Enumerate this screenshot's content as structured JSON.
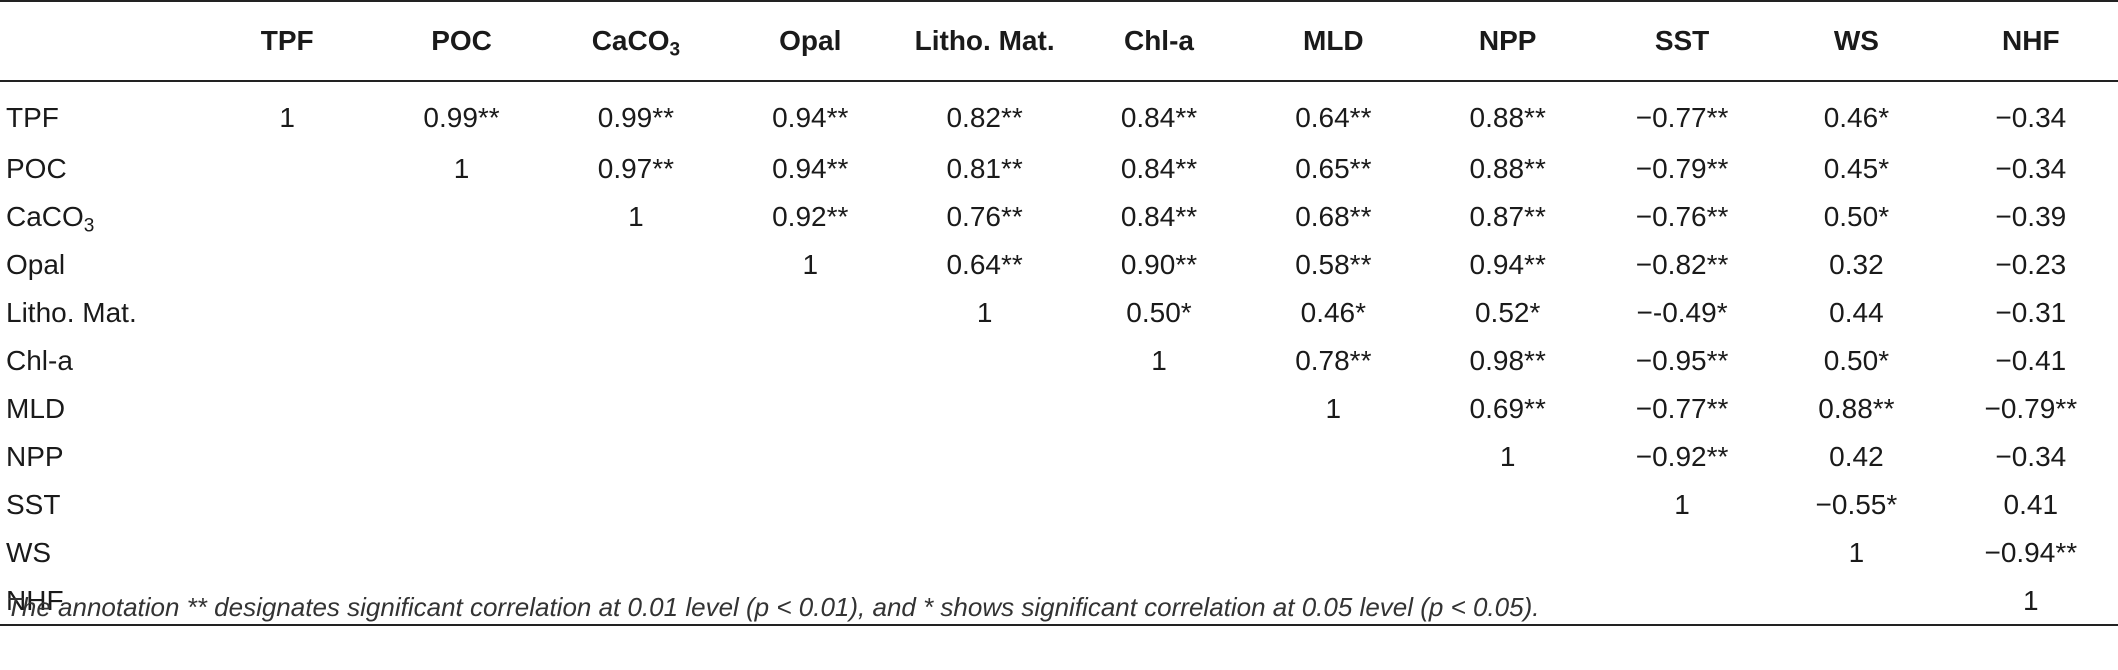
{
  "table": {
    "corner": "",
    "columns": [
      {
        "main": "TPF",
        "sub": ""
      },
      {
        "main": "POC",
        "sub": ""
      },
      {
        "main": "CaCO",
        "sub": "3"
      },
      {
        "main": "Opal",
        "sub": ""
      },
      {
        "main": "Litho. Mat.",
        "sub": ""
      },
      {
        "main": "Chl-a",
        "sub": ""
      },
      {
        "main": "MLD",
        "sub": ""
      },
      {
        "main": "NPP",
        "sub": ""
      },
      {
        "main": "SST",
        "sub": ""
      },
      {
        "main": "WS",
        "sub": ""
      },
      {
        "main": "NHF",
        "sub": ""
      }
    ],
    "rows": [
      {
        "label": {
          "main": "TPF",
          "sub": ""
        },
        "cells": [
          "1",
          "0.99**",
          "0.99**",
          "0.94**",
          "0.82**",
          "0.84**",
          "0.64**",
          "0.88**",
          "−0.77**",
          "0.46*",
          "−0.34"
        ]
      },
      {
        "label": {
          "main": "POC",
          "sub": ""
        },
        "cells": [
          "",
          "1",
          "0.97**",
          "0.94**",
          "0.81**",
          "0.84**",
          "0.65**",
          "0.88**",
          "−0.79**",
          "0.45*",
          "−0.34"
        ]
      },
      {
        "label": {
          "main": "CaCO",
          "sub": "3"
        },
        "cells": [
          "",
          "",
          "1",
          "0.92**",
          "0.76**",
          "0.84**",
          "0.68**",
          "0.87**",
          "−0.76**",
          "0.50*",
          "−0.39"
        ]
      },
      {
        "label": {
          "main": "Opal",
          "sub": ""
        },
        "cells": [
          "",
          "",
          "",
          "1",
          "0.64**",
          "0.90**",
          "0.58**",
          "0.94**",
          "−0.82**",
          "0.32",
          "−0.23"
        ]
      },
      {
        "label": {
          "main": "Litho. Mat.",
          "sub": ""
        },
        "cells": [
          "",
          "",
          "",
          "",
          "1",
          "0.50*",
          "0.46*",
          "0.52*",
          "−-0.49*",
          "0.44",
          "−0.31"
        ]
      },
      {
        "label": {
          "main": "Chl-a",
          "sub": ""
        },
        "cells": [
          "",
          "",
          "",
          "",
          "",
          "1",
          "0.78**",
          "0.98**",
          "−0.95**",
          "0.50*",
          "−0.41"
        ]
      },
      {
        "label": {
          "main": "MLD",
          "sub": ""
        },
        "cells": [
          "",
          "",
          "",
          "",
          "",
          "",
          "1",
          "0.69**",
          "−0.77**",
          "0.88**",
          "−0.79**"
        ]
      },
      {
        "label": {
          "main": "NPP",
          "sub": ""
        },
        "cells": [
          "",
          "",
          "",
          "",
          "",
          "",
          "",
          "1",
          "−0.92**",
          "0.42",
          "−0.34"
        ]
      },
      {
        "label": {
          "main": "SST",
          "sub": ""
        },
        "cells": [
          "",
          "",
          "",
          "",
          "",
          "",
          "",
          "",
          "1",
          "−0.55*",
          "0.41"
        ]
      },
      {
        "label": {
          "main": "WS",
          "sub": ""
        },
        "cells": [
          "",
          "",
          "",
          "",
          "",
          "",
          "",
          "",
          "",
          "1",
          "−0.94**"
        ]
      },
      {
        "label": {
          "main": "NHF",
          "sub": ""
        },
        "cells": [
          "",
          "",
          "",
          "",
          "",
          "",
          "",
          "",
          "",
          "",
          "1"
        ]
      }
    ]
  },
  "footnote": "The annotation ** designates significant correlation at 0.01 level (p < 0.01), and * shows significant correlation at 0.05 level (p < 0.05)."
}
